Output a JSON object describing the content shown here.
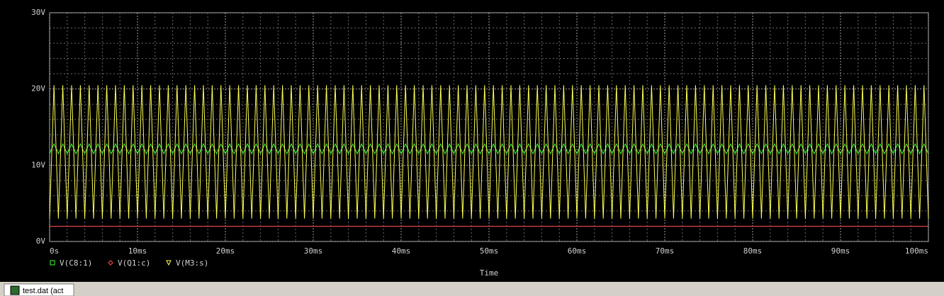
{
  "chart_data": {
    "type": "line",
    "xlabel": "Time",
    "xlim": [
      0,
      100
    ],
    "xticks": [
      {
        "value": 0,
        "label": "0s"
      },
      {
        "value": 10,
        "label": "10ms"
      },
      {
        "value": 20,
        "label": "20ms"
      },
      {
        "value": 30,
        "label": "30ms"
      },
      {
        "value": 40,
        "label": "40ms"
      },
      {
        "value": 50,
        "label": "50ms"
      },
      {
        "value": 60,
        "label": "60ms"
      },
      {
        "value": 70,
        "label": "70ms"
      },
      {
        "value": 80,
        "label": "80ms"
      },
      {
        "value": 90,
        "label": "90ms"
      },
      {
        "value": 100,
        "label": "100ms"
      }
    ],
    "ylim": [
      0,
      30
    ],
    "yticks": [
      {
        "value": 0,
        "label": "0V"
      },
      {
        "value": 10,
        "label": "10V"
      },
      {
        "value": 20,
        "label": "20V"
      },
      {
        "value": 30,
        "label": "30V"
      }
    ],
    "grid": true,
    "x": [
      0,
      0.5,
      1,
      1.5,
      2,
      2.5,
      3,
      3.5,
      4,
      4.5,
      5,
      5.5,
      6,
      6.5,
      7,
      7.5,
      8,
      8.5,
      9,
      9.5,
      10,
      10.5,
      11,
      11.5,
      12,
      12.5,
      13,
      13.5,
      14,
      14.5,
      15,
      15.5,
      16,
      16.5,
      17,
      17.5,
      18,
      18.5,
      19,
      19.5,
      20,
      20.5,
      21,
      21.5,
      22,
      22.5,
      23,
      23.5,
      24,
      24.5,
      25,
      25.5,
      26,
      26.5,
      27,
      27.5,
      28,
      28.5,
      29,
      29.5,
      30,
      30.5,
      31,
      31.5,
      32,
      32.5,
      33,
      33.5,
      34,
      34.5,
      35,
      35.5,
      36,
      36.5,
      37,
      37.5,
      38,
      38.5,
      39,
      39.5,
      40,
      40.5,
      41,
      41.5,
      42,
      42.5,
      43,
      43.5,
      44,
      44.5,
      45,
      45.5,
      46,
      46.5,
      47,
      47.5,
      48,
      48.5,
      49,
      49.5,
      50,
      50.5,
      51,
      51.5,
      52,
      52.5,
      53,
      53.5,
      54,
      54.5,
      55,
      55.5,
      56,
      56.5,
      57,
      57.5,
      58,
      58.5,
      59,
      59.5,
      60,
      60.5,
      61,
      61.5,
      62,
      62.5,
      63,
      63.5,
      64,
      64.5,
      65,
      65.5,
      66,
      66.5,
      67,
      67.5,
      68,
      68.5,
      69,
      69.5,
      70,
      70.5,
      71,
      71.5,
      72,
      72.5,
      73,
      73.5,
      74,
      74.5,
      75,
      75.5,
      76,
      76.5,
      77,
      77.5,
      78,
      78.5,
      79,
      79.5,
      80,
      80.5,
      81,
      81.5,
      82,
      82.5,
      83,
      83.5,
      84,
      84.5,
      85,
      85.5,
      86,
      86.5,
      87,
      87.5,
      88,
      88.5,
      89,
      89.5,
      90,
      90.5,
      91,
      91.5,
      92,
      92.5,
      93,
      93.5,
      94,
      94.5,
      95,
      95.5,
      96,
      96.5,
      97,
      97.5,
      98,
      98.5,
      99,
      99.5,
      100
    ],
    "series": [
      {
        "name": "V(C8:1)",
        "color": "#40ff40",
        "marker": "square",
        "values": [
          11.5,
          12.8,
          11.5,
          12.8,
          11.5,
          12.8,
          11.5,
          12.8,
          11.5,
          12.8,
          11.5,
          12.8,
          11.5,
          12.8,
          11.5,
          12.8,
          11.5,
          12.8,
          11.5,
          12.8,
          11.5,
          12.8,
          11.5,
          12.8,
          11.5,
          12.8,
          11.5,
          12.8,
          11.5,
          12.8,
          11.5,
          12.8,
          11.5,
          12.8,
          11.5,
          12.8,
          11.5,
          12.8,
          11.5,
          12.8,
          11.5,
          12.8,
          11.5,
          12.8,
          11.5,
          12.8,
          11.5,
          12.8,
          11.5,
          12.8,
          11.5,
          12.8,
          11.5,
          12.8,
          11.5,
          12.8,
          11.5,
          12.8,
          11.5,
          12.8,
          11.5,
          12.8,
          11.5,
          12.8,
          11.5,
          12.8,
          11.5,
          12.8,
          11.5,
          12.8,
          11.5,
          12.8,
          11.5,
          12.8,
          11.5,
          12.8,
          11.5,
          12.8,
          11.5,
          12.8,
          11.5,
          12.8,
          11.5,
          12.8,
          11.5,
          12.8,
          11.5,
          12.8,
          11.5,
          12.8,
          11.5,
          12.8,
          11.5,
          12.8,
          11.5,
          12.8,
          11.5,
          12.8,
          11.5,
          12.8,
          11.5,
          12.8,
          11.5,
          12.8,
          11.5,
          12.8,
          11.5,
          12.8,
          11.5,
          12.8,
          11.5,
          12.8,
          11.5,
          12.8,
          11.5,
          12.8,
          11.5,
          12.8,
          11.5,
          12.8,
          11.5,
          12.8,
          11.5,
          12.8,
          11.5,
          12.8,
          11.5,
          12.8,
          11.5,
          12.8,
          11.5,
          12.8,
          11.5,
          12.8,
          11.5,
          12.8,
          11.5,
          12.8,
          11.5,
          12.8,
          11.5,
          12.8,
          11.5,
          12.8,
          11.5,
          12.8,
          11.5,
          12.8,
          11.5,
          12.8,
          11.5,
          12.8,
          11.5,
          12.8,
          11.5,
          12.8,
          11.5,
          12.8,
          11.5,
          12.8,
          11.5,
          12.8,
          11.5,
          12.8,
          11.5,
          12.8,
          11.5,
          12.8,
          11.5,
          12.8,
          11.5,
          12.8,
          11.5,
          12.8,
          11.5,
          12.8,
          11.5,
          12.8,
          11.5,
          12.8,
          11.5,
          12.8,
          11.5,
          12.8,
          11.5,
          12.8,
          11.5,
          12.8,
          11.5,
          12.8,
          11.5,
          12.8,
          11.5,
          12.8,
          11.5,
          12.8,
          11.5,
          12.8,
          11.5,
          12.8,
          11.5
        ]
      },
      {
        "name": "V(Q1:c)",
        "color": "#ff5050",
        "marker": "diamond",
        "values": [
          2,
          2,
          2,
          2,
          2,
          2,
          2,
          2,
          2,
          2,
          2,
          2,
          2,
          2,
          2,
          2,
          2,
          2,
          2,
          2,
          2,
          2,
          2,
          2,
          2,
          2,
          2,
          2,
          2,
          2,
          2,
          2,
          2,
          2,
          2,
          2,
          2,
          2,
          2,
          2,
          2,
          2,
          2,
          2,
          2,
          2,
          2,
          2,
          2,
          2,
          2,
          2,
          2,
          2,
          2,
          2,
          2,
          2,
          2,
          2,
          2,
          2,
          2,
          2,
          2,
          2,
          2,
          2,
          2,
          2,
          2,
          2,
          2,
          2,
          2,
          2,
          2,
          2,
          2,
          2,
          2,
          2,
          2,
          2,
          2,
          2,
          2,
          2,
          2,
          2,
          2,
          2,
          2,
          2,
          2,
          2,
          2,
          2,
          2,
          2,
          2,
          2,
          2,
          2,
          2,
          2,
          2,
          2,
          2,
          2,
          2,
          2,
          2,
          2,
          2,
          2,
          2,
          2,
          2,
          2,
          2,
          2,
          2,
          2,
          2,
          2,
          2,
          2,
          2,
          2,
          2,
          2,
          2,
          2,
          2,
          2,
          2,
          2,
          2,
          2,
          2,
          2,
          2,
          2,
          2,
          2,
          2,
          2,
          2,
          2,
          2,
          2,
          2,
          2,
          2,
          2,
          2,
          2,
          2,
          2,
          2,
          2,
          2,
          2,
          2,
          2,
          2,
          2,
          2,
          2,
          2,
          2,
          2,
          2,
          2,
          2,
          2,
          2,
          2,
          2,
          2,
          2,
          2,
          2,
          2,
          2,
          2,
          2,
          2,
          2,
          2,
          2,
          2,
          2,
          2,
          2,
          2,
          2,
          2,
          2,
          2
        ]
      },
      {
        "name": "V(M3:s)",
        "color": "#ffff50",
        "marker": "triangle",
        "values": [
          3,
          20.5,
          3,
          20.5,
          3,
          20.5,
          3,
          20.5,
          3,
          20.5,
          3,
          20.5,
          3,
          20.5,
          3,
          20.5,
          3,
          20.5,
          3,
          20.5,
          3,
          20.5,
          3,
          20.5,
          3,
          20.5,
          3,
          20.5,
          3,
          20.5,
          3,
          20.5,
          3,
          20.5,
          3,
          20.5,
          3,
          20.5,
          3,
          20.5,
          3,
          20.5,
          3,
          20.5,
          3,
          20.5,
          3,
          20.5,
          3,
          20.5,
          3,
          20.5,
          3,
          20.5,
          3,
          20.5,
          3,
          20.5,
          3,
          20.5,
          3,
          20.5,
          3,
          20.5,
          3,
          20.5,
          3,
          20.5,
          3,
          20.5,
          3,
          20.5,
          3,
          20.5,
          3,
          20.5,
          3,
          20.5,
          3,
          20.5,
          3,
          20.5,
          3,
          20.5,
          3,
          20.5,
          3,
          20.5,
          3,
          20.5,
          3,
          20.5,
          3,
          20.5,
          3,
          20.5,
          3,
          20.5,
          3,
          20.5,
          3,
          20.5,
          3,
          20.5,
          3,
          20.5,
          3,
          20.5,
          3,
          20.5,
          3,
          20.5,
          3,
          20.5,
          3,
          20.5,
          3,
          20.5,
          3,
          20.5,
          3,
          20.5,
          3,
          20.5,
          3,
          20.5,
          3,
          20.5,
          3,
          20.5,
          3,
          20.5,
          3,
          20.5,
          3,
          20.5,
          3,
          20.5,
          3,
          20.5,
          3,
          20.5,
          3,
          20.5,
          3,
          20.5,
          3,
          20.5,
          3,
          20.5,
          3,
          20.5,
          3,
          20.5,
          3,
          20.5,
          3,
          20.5,
          3,
          20.5,
          3,
          20.5,
          3,
          20.5,
          3,
          20.5,
          3,
          20.5,
          3,
          20.5,
          3,
          20.5,
          3,
          20.5,
          3,
          20.5,
          3,
          20.5,
          3,
          20.5,
          3,
          20.5,
          3,
          20.5,
          3,
          20.5,
          3,
          20.5,
          3,
          20.5,
          3,
          20.5,
          3,
          20.5,
          3,
          20.5,
          3,
          20.5,
          3,
          20.5,
          3
        ]
      }
    ]
  },
  "window": {
    "tab": "test.dat (act"
  }
}
